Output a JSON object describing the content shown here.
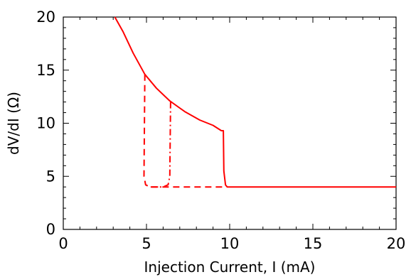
{
  "chart_data": {
    "type": "line",
    "title": "",
    "xlabel": "Injection Current, I (mA)",
    "ylabel": "dV/dI (Ω)",
    "xlim": [
      0,
      20
    ],
    "ylim": [
      0,
      20
    ],
    "x_ticks": [
      0,
      5,
      10,
      15,
      20
    ],
    "y_ticks": [
      0,
      5,
      10,
      15,
      20
    ],
    "x_tick_labels": [
      "0",
      "5",
      "10",
      "15",
      "20"
    ],
    "y_tick_labels": [
      "0",
      "5",
      "10",
      "15",
      "20"
    ],
    "minor_ticks_per_major": 5,
    "grid": false,
    "legend": "none",
    "series": [
      {
        "style": "solid",
        "color": "#ff0000",
        "points": [
          [
            3.1,
            20
          ],
          [
            3.6,
            18.6
          ],
          [
            4.2,
            16.6
          ],
          [
            4.9,
            14.6
          ],
          [
            5.6,
            13.3
          ],
          [
            6.4,
            12.1
          ],
          [
            7.3,
            11.1
          ],
          [
            8.2,
            10.3
          ],
          [
            9.0,
            9.8
          ],
          [
            9.5,
            9.3
          ],
          [
            9.62,
            9.3
          ],
          [
            9.65,
            5.5
          ],
          [
            9.75,
            4.2
          ],
          [
            9.85,
            4.0
          ],
          [
            20,
            4.0
          ]
        ]
      },
      {
        "style": "dashed",
        "color": "#ff0000",
        "points": [
          [
            4.9,
            14.6
          ],
          [
            4.85,
            5.0
          ],
          [
            4.95,
            4.2
          ],
          [
            5.2,
            4.0
          ],
          [
            9.75,
            4.0
          ]
        ]
      },
      {
        "style": "dash-dot",
        "color": "#ff0000",
        "points": [
          [
            6.45,
            12.0
          ],
          [
            6.4,
            5.0
          ],
          [
            6.3,
            4.2
          ],
          [
            6.0,
            4.0
          ],
          [
            5.2,
            4.0
          ]
        ]
      }
    ]
  }
}
